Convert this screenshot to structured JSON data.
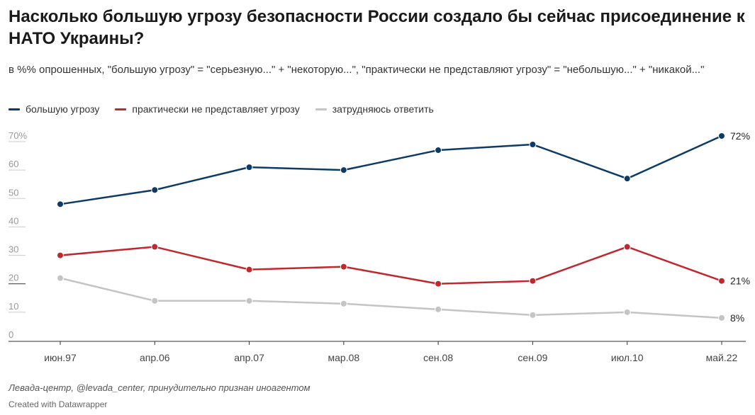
{
  "header": {
    "title": "Насколько большую угрозу безопасности России создало бы сейчас присоединение к НАТО Украины?",
    "subtitle": "в %% опрошенных, \"большую угрозу\" = \"серьезную...\" + \"некоторую...\", \"практически не представляют угрозу\" = \"небольшую...\" + \"никакой...\""
  },
  "legend": [
    {
      "label": "большую угрозу",
      "color": "#0d3b66"
    },
    {
      "label": "практически не представляет угрозу",
      "color": "#c1272d"
    },
    {
      "label": "затрудняюсь ответить",
      "color": "#c4c4c4"
    }
  ],
  "chart_data": {
    "type": "line",
    "categories": [
      "июн.97",
      "апр.06",
      "апр.07",
      "мар.08",
      "сен.08",
      "сен.09",
      "июл.10",
      "май.22"
    ],
    "series": [
      {
        "name": "большую угрозу",
        "color": "#0d3b66",
        "values": [
          48,
          53,
          61,
          60,
          67,
          69,
          57,
          72
        ],
        "end_label": "72%"
      },
      {
        "name": "практически не представляет угрозу",
        "color": "#c1272d",
        "values": [
          30,
          33,
          25,
          26,
          20,
          21,
          33,
          21
        ],
        "end_label": "21%"
      },
      {
        "name": "затрудняюсь ответить",
        "color": "#c4c4c4",
        "values": [
          22,
          14,
          14,
          13,
          11,
          9,
          10,
          8
        ],
        "end_label": "8%"
      }
    ],
    "yticks": [
      "70%",
      "60",
      "50",
      "40",
      "30",
      "20",
      "10",
      "0"
    ],
    "ylim": [
      0,
      72
    ],
    "grid": false
  },
  "footer": {
    "source": "Левада-центр, @levada_center, принудительно признан иноагентом",
    "credit": "Created with Datawrapper"
  }
}
